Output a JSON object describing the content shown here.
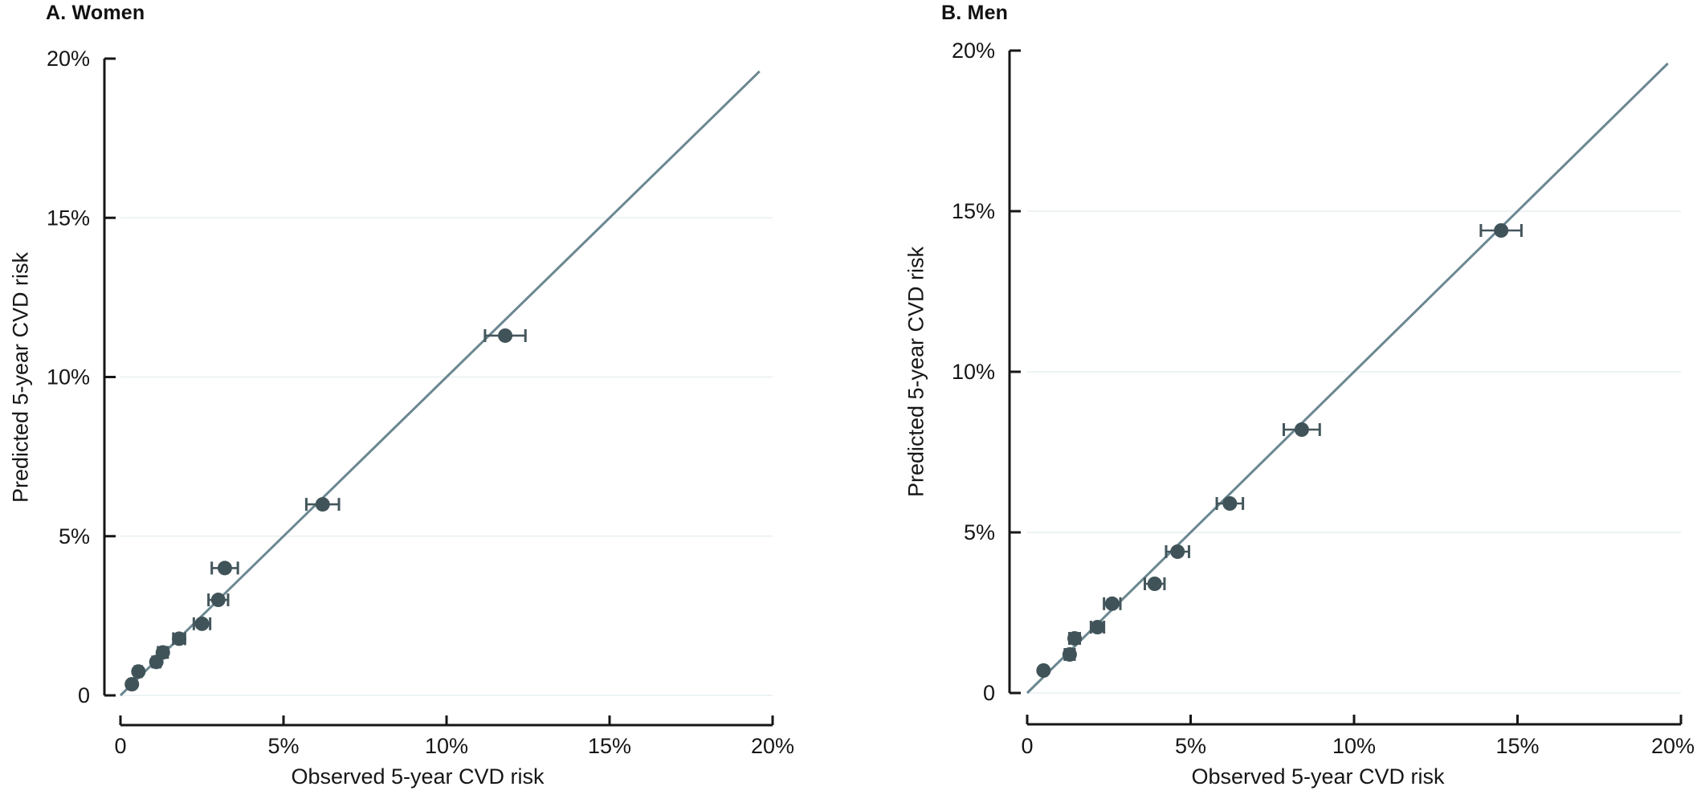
{
  "figure": {
    "background": "#ffffff"
  },
  "colors": {
    "point": "#405359",
    "error_bar": "#44565c",
    "identity_line": "#6b8791",
    "gridline": "#edf3f4",
    "axis": "#161616",
    "text": "#161616"
  },
  "chart_data": [
    {
      "type": "scatter",
      "panel": "A",
      "title": "A. Women",
      "xlabel": "Observed 5-year CVD risk",
      "ylabel": "Predicted 5-year CVD risk",
      "xlim": [
        0,
        20
      ],
      "ylim": [
        0,
        20
      ],
      "grid": "horizontal-only",
      "grid_y": [
        0,
        5,
        10,
        15
      ],
      "xticks": [
        {
          "value": 0,
          "label": "0"
        },
        {
          "value": 5,
          "label": "5%"
        },
        {
          "value": 10,
          "label": "10%"
        },
        {
          "value": 15,
          "label": "15%"
        },
        {
          "value": 20,
          "label": "20%"
        }
      ],
      "yticks": [
        {
          "value": 0,
          "label": "0"
        },
        {
          "value": 5,
          "label": "5%"
        },
        {
          "value": 10,
          "label": "10%"
        },
        {
          "value": 15,
          "label": "15%"
        },
        {
          "value": 20,
          "label": "20%"
        }
      ],
      "identity_line": {
        "from": 0,
        "to": 19.6
      },
      "points": [
        {
          "observed": 0.35,
          "predicted": 0.35,
          "xerr": 0.08
        },
        {
          "observed": 0.55,
          "predicted": 0.75,
          "xerr": 0.1
        },
        {
          "observed": 1.1,
          "predicted": 1.05,
          "xerr": 0.12
        },
        {
          "observed": 1.3,
          "predicted": 1.35,
          "xerr": 0.15
        },
        {
          "observed": 1.8,
          "predicted": 1.78,
          "xerr": 0.18
        },
        {
          "observed": 2.5,
          "predicted": 2.25,
          "xerr": 0.25
        },
        {
          "observed": 3.0,
          "predicted": 3.0,
          "xerr": 0.3
        },
        {
          "observed": 3.2,
          "predicted": 4.0,
          "xerr": 0.4
        },
        {
          "observed": 6.2,
          "predicted": 6.0,
          "xerr": 0.5
        },
        {
          "observed": 11.8,
          "predicted": 11.3,
          "xerr": 0.62
        }
      ]
    },
    {
      "type": "scatter",
      "panel": "B",
      "title": "B. Men",
      "xlabel": "Observed 5-year CVD risk",
      "ylabel": "Predicted 5-year CVD risk",
      "xlim": [
        0,
        20
      ],
      "ylim": [
        0,
        20
      ],
      "grid": "horizontal-only",
      "grid_y": [
        0,
        5,
        10,
        15
      ],
      "xticks": [
        {
          "value": 0,
          "label": "0"
        },
        {
          "value": 5,
          "label": "5%"
        },
        {
          "value": 10,
          "label": "10%"
        },
        {
          "value": 15,
          "label": "15%"
        },
        {
          "value": 20,
          "label": "20%"
        }
      ],
      "yticks": [
        {
          "value": 0,
          "label": "0"
        },
        {
          "value": 5,
          "label": "5%"
        },
        {
          "value": 10,
          "label": "10%"
        },
        {
          "value": 15,
          "label": "15%"
        },
        {
          "value": 20,
          "label": "20%"
        }
      ],
      "identity_line": {
        "from": 0,
        "to": 19.6
      },
      "points": [
        {
          "observed": 0.5,
          "predicted": 0.7,
          "xerr": 0.08
        },
        {
          "observed": 1.3,
          "predicted": 1.2,
          "xerr": 0.15
        },
        {
          "observed": 1.45,
          "predicted": 1.7,
          "xerr": 0.16
        },
        {
          "observed": 2.15,
          "predicted": 2.05,
          "xerr": 0.2
        },
        {
          "observed": 2.6,
          "predicted": 2.78,
          "xerr": 0.25
        },
        {
          "observed": 3.9,
          "predicted": 3.4,
          "xerr": 0.3
        },
        {
          "observed": 4.6,
          "predicted": 4.4,
          "xerr": 0.35
        },
        {
          "observed": 6.2,
          "predicted": 5.9,
          "xerr": 0.4
        },
        {
          "observed": 8.4,
          "predicted": 8.2,
          "xerr": 0.55
        },
        {
          "observed": 14.5,
          "predicted": 14.4,
          "xerr": 0.62
        }
      ]
    }
  ]
}
